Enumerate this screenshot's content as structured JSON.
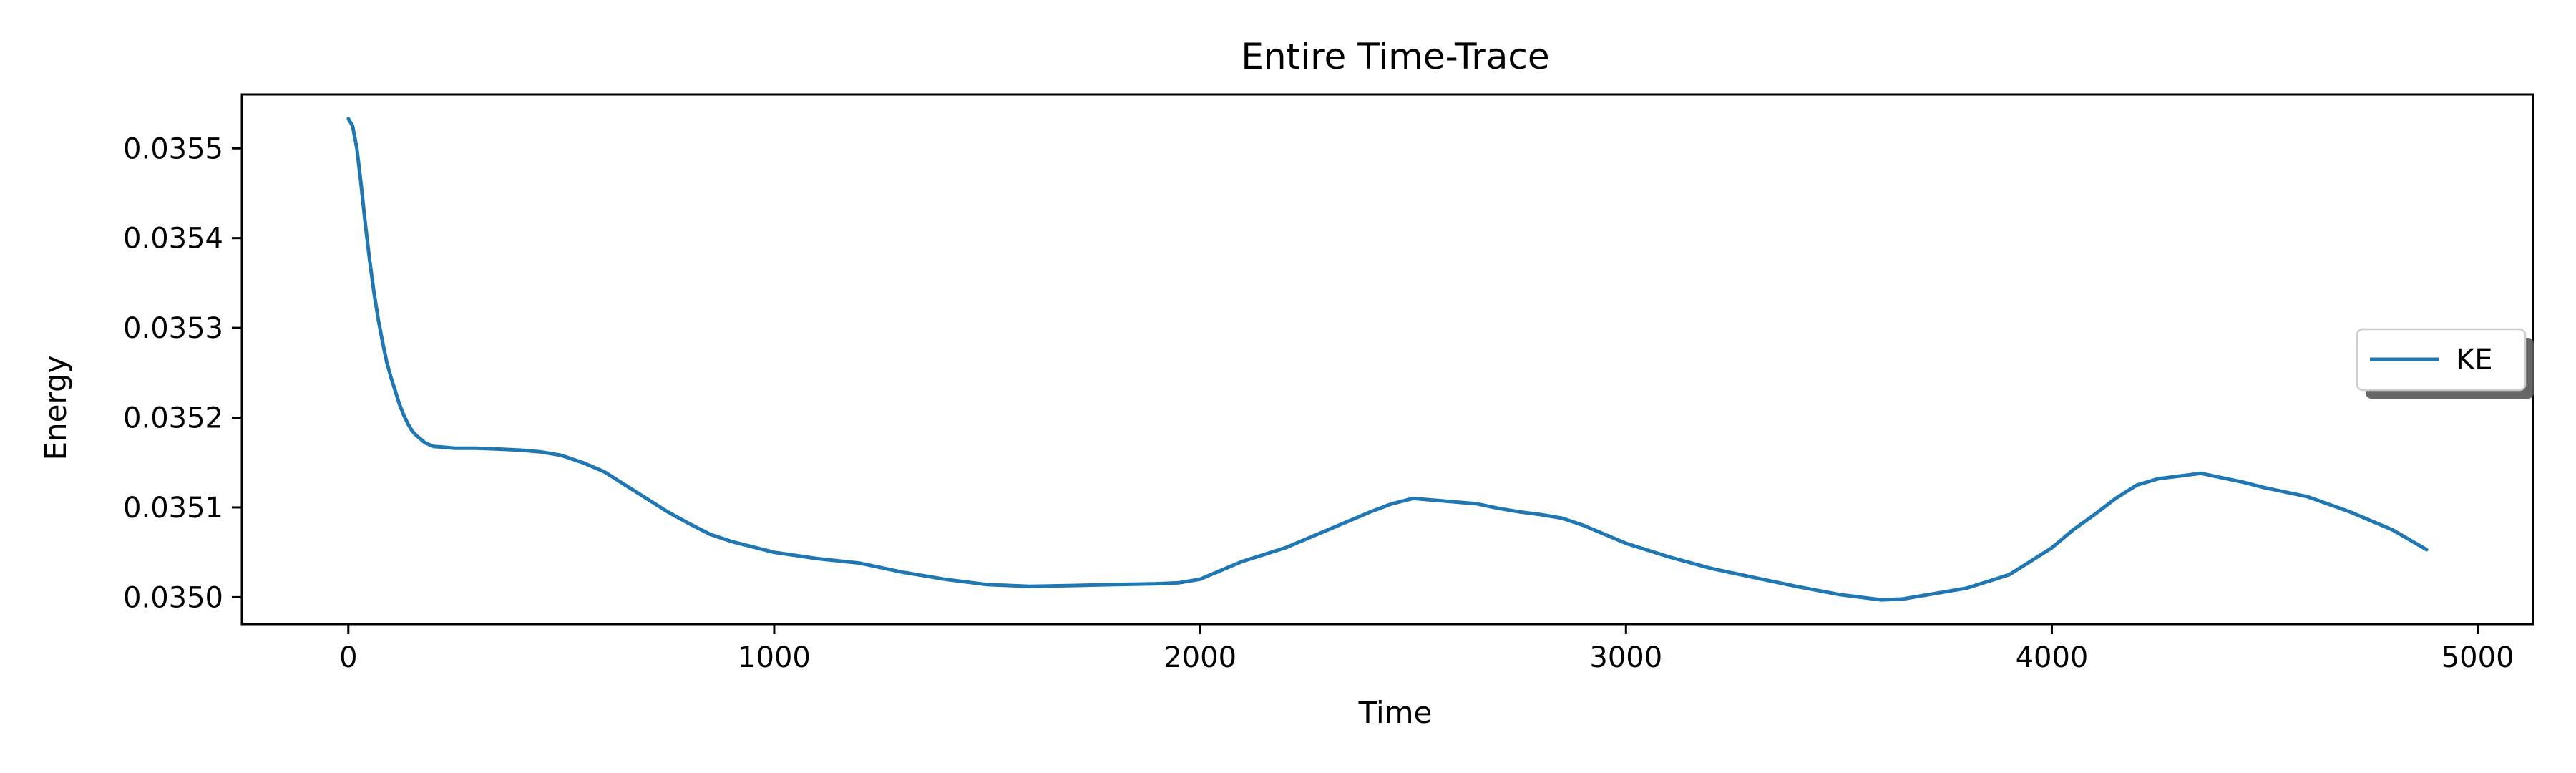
{
  "chart_data": {
    "type": "line",
    "title": "Entire Time-Trace",
    "xlabel": "Time",
    "ylabel": "Energy",
    "xlim": [
      -250,
      5130
    ],
    "ylim": [
      0.03497,
      0.03556
    ],
    "xticks": [
      0,
      1000,
      2000,
      3000,
      4000,
      5000
    ],
    "xtick_labels": [
      "0",
      "1000",
      "2000",
      "3000",
      "4000",
      "5000"
    ],
    "yticks": [
      0.035,
      0.0351,
      0.0352,
      0.0353,
      0.0354,
      0.0355
    ],
    "ytick_labels": [
      "0.0350",
      "0.0351",
      "0.0352",
      "0.0353",
      "0.0354",
      "0.0355"
    ],
    "grid": false,
    "legend_position": "center-right",
    "series": [
      {
        "name": "KE",
        "color": "#1f77b4",
        "x": [
          0,
          10,
          20,
          30,
          40,
          50,
          60,
          70,
          80,
          90,
          100,
          110,
          120,
          130,
          140,
          150,
          160,
          170,
          180,
          190,
          200,
          225,
          250,
          275,
          300,
          350,
          400,
          450,
          500,
          550,
          600,
          650,
          700,
          750,
          800,
          850,
          900,
          1000,
          1100,
          1200,
          1300,
          1400,
          1500,
          1600,
          1700,
          1800,
          1900,
          1950,
          2000,
          2050,
          2100,
          2200,
          2300,
          2400,
          2450,
          2500,
          2550,
          2600,
          2650,
          2700,
          2750,
          2800,
          2850,
          2900,
          3000,
          3100,
          3200,
          3300,
          3400,
          3500,
          3600,
          3650,
          3700,
          3800,
          3900,
          3950,
          4000,
          4050,
          4100,
          4150,
          4200,
          4250,
          4300,
          4350,
          4400,
          4450,
          4500,
          4600,
          4700,
          4800,
          4880
        ],
        "y": [
          0.035533,
          0.035525,
          0.0355,
          0.03546,
          0.035415,
          0.035375,
          0.03534,
          0.03531,
          0.035285,
          0.035262,
          0.035245,
          0.03523,
          0.035215,
          0.035203,
          0.035193,
          0.035185,
          0.03518,
          0.035176,
          0.035172,
          0.03517,
          0.035168,
          0.035167,
          0.035166,
          0.035166,
          0.035166,
          0.035165,
          0.035164,
          0.035162,
          0.035158,
          0.03515,
          0.03514,
          0.035125,
          0.03511,
          0.035095,
          0.035082,
          0.03507,
          0.035062,
          0.03505,
          0.035043,
          0.035038,
          0.035028,
          0.03502,
          0.035014,
          0.035012,
          0.035013,
          0.035014,
          0.035015,
          0.035016,
          0.03502,
          0.03503,
          0.03504,
          0.035055,
          0.035075,
          0.035095,
          0.035104,
          0.03511,
          0.035108,
          0.035106,
          0.035104,
          0.035099,
          0.035095,
          0.035092,
          0.035088,
          0.03508,
          0.03506,
          0.035045,
          0.035032,
          0.035022,
          0.035012,
          0.035003,
          0.034997,
          0.034998,
          0.035002,
          0.03501,
          0.035025,
          0.03504,
          0.035055,
          0.035075,
          0.035092,
          0.03511,
          0.035125,
          0.035132,
          0.035135,
          0.035138,
          0.035133,
          0.035128,
          0.035122,
          0.035112,
          0.035095,
          0.035075,
          0.035053
        ]
      }
    ]
  }
}
